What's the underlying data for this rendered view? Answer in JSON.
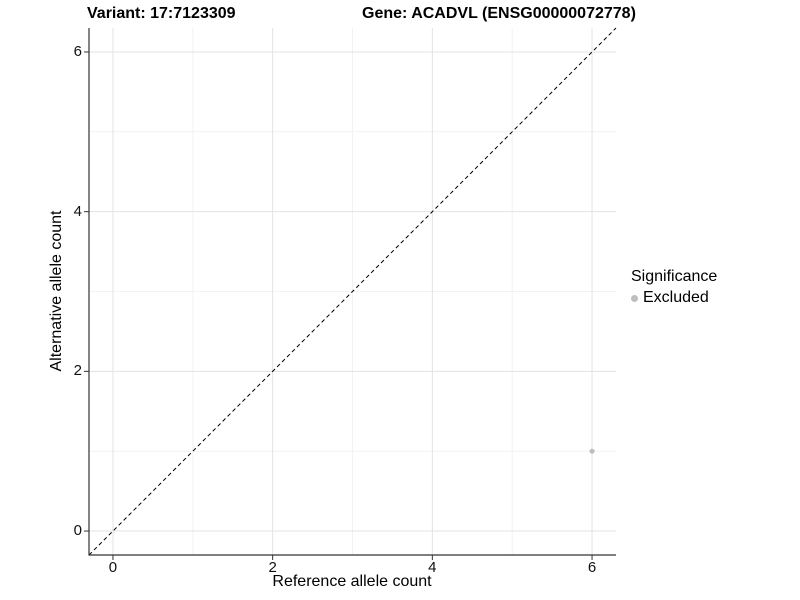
{
  "header": {
    "variant_title": "Variant: 17:7123309",
    "gene_title": "Gene: ACADVL (ENSG00000072778)"
  },
  "chart_data": {
    "type": "scatter",
    "title": "Variant: 17:7123309    Gene: ACADVL (ENSG00000072778)",
    "xlabel": "Reference allele count",
    "ylabel": "Alternative allele count",
    "xlim": [
      -0.3,
      6.3
    ],
    "ylim": [
      -0.3,
      6.3
    ],
    "x_ticks": [
      0,
      2,
      4,
      6
    ],
    "y_ticks": [
      0,
      2,
      4,
      6
    ],
    "x_minor_ticks": [
      1,
      3,
      5
    ],
    "y_minor_ticks": [
      1,
      3,
      5
    ],
    "grid": "on",
    "reference_line": {
      "type": "identity",
      "style": "dashed",
      "x1": -0.3,
      "y1": -0.3,
      "x2": 6.3,
      "y2": 6.3
    },
    "series": [
      {
        "name": "Excluded",
        "color": "#BEBEBE",
        "points": [
          {
            "x": 6,
            "y": 1
          }
        ]
      }
    ],
    "legend": {
      "title": "Significance",
      "position": "right",
      "entries": [
        {
          "label": "Excluded",
          "color": "#BEBEBE"
        }
      ]
    }
  },
  "colors": {
    "background": "#FFFFFF",
    "grid_major": "#E3E3E3",
    "grid_minor": "#F2F2F2",
    "axis_line": "#333333",
    "tick": "#333333",
    "text": "#000000",
    "dashed_line": "#000000"
  }
}
